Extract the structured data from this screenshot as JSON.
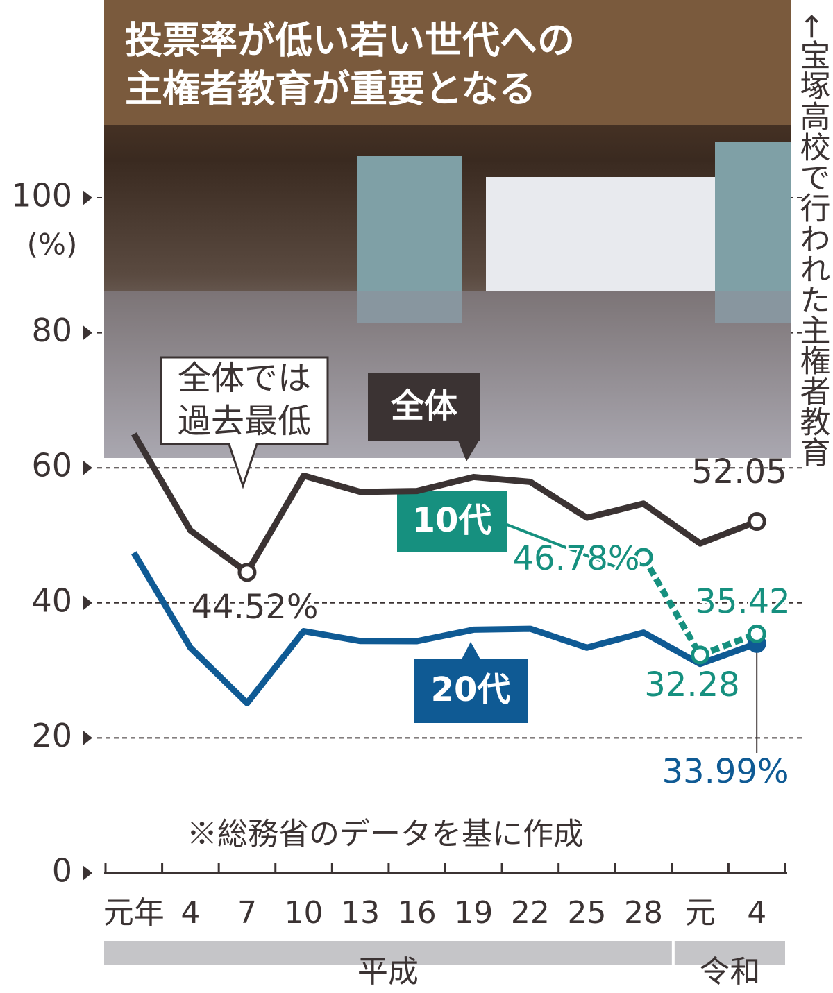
{
  "chart_data": {
    "type": "line",
    "title": [
      "投票率が低い若い世代への",
      "主権者教育が重要となる"
    ],
    "photo_caption": "←宝塚高校で行われた主権者教育",
    "y_label": "(%)",
    "note": "※総務省のデータを基に作成",
    "annotation": "全体では過去最低",
    "categories": [
      "元年",
      "4",
      "7",
      "10",
      "13",
      "16",
      "19",
      "22",
      "25",
      "28",
      "元",
      "4"
    ],
    "groups": [
      {
        "label": "平成",
        "start": 0,
        "end": 9
      },
      {
        "label": "令和",
        "start": 10,
        "end": 11
      }
    ],
    "series": [
      {
        "name": "全体",
        "color": "#3b3333",
        "values": [
          65.02,
          50.72,
          44.52,
          58.84,
          56.44,
          56.57,
          58.64,
          57.92,
          52.61,
          54.7,
          48.8,
          52.05
        ],
        "value_labels": [
          null,
          null,
          "44.52%",
          null,
          null,
          null,
          null,
          null,
          null,
          null,
          null,
          "52.05"
        ]
      },
      {
        "name": "10代",
        "color": "#16907f",
        "values": [
          null,
          null,
          null,
          null,
          null,
          null,
          null,
          null,
          null,
          46.78,
          32.28,
          35.42
        ],
        "value_labels": [
          null,
          null,
          null,
          null,
          null,
          null,
          null,
          null,
          null,
          "46.78%",
          "32.28",
          "35.42"
        ]
      },
      {
        "name": "20代",
        "color": "#0f5a94",
        "values": [
          47.42,
          33.35,
          25.15,
          35.81,
          34.35,
          34.33,
          36.03,
          36.17,
          33.37,
          35.6,
          30.96,
          33.99
        ],
        "value_labels": [
          null,
          null,
          null,
          null,
          null,
          null,
          null,
          null,
          null,
          null,
          null,
          "33.99%"
        ]
      }
    ],
    "ylim": [
      0,
      100
    ],
    "yticks": [
      0,
      20,
      40,
      60,
      80,
      100
    ],
    "grid": true
  }
}
